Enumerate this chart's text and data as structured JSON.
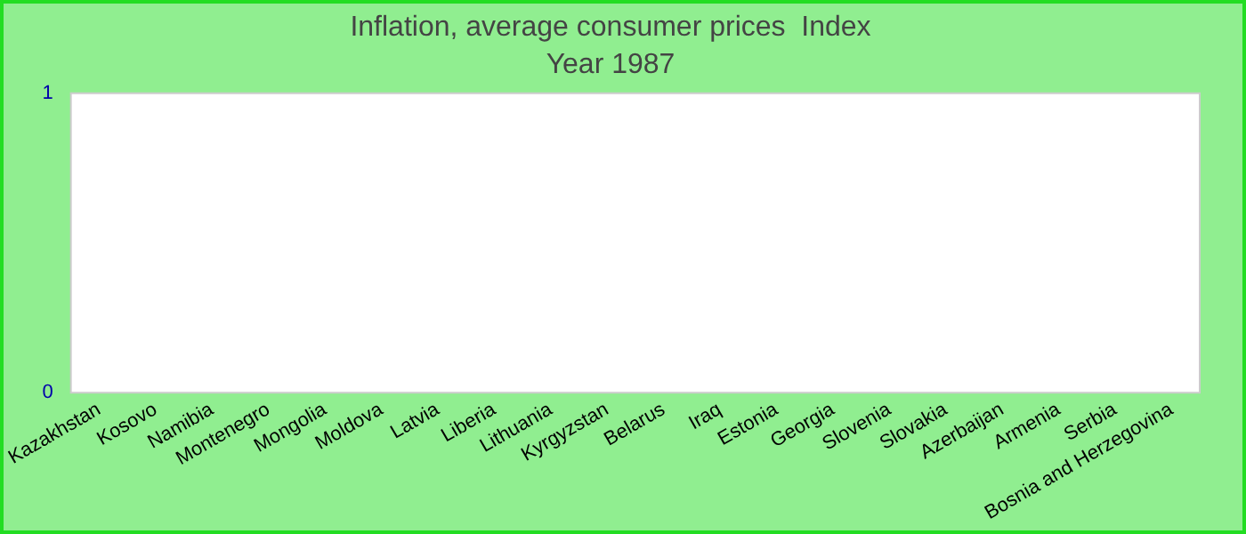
{
  "chart_data": {
    "type": "bar",
    "title": "Inflation, average consumer prices  Index",
    "subtitle": "Year 1987",
    "categories": [
      "Kazakhstan",
      "Kosovo",
      "Namibia",
      "Montenegro",
      "Mongolia",
      "Moldova",
      "Latvia",
      "Liberia",
      "Lithuania",
      "Kyrgyzstan",
      "Belarus",
      "Iraq",
      "Estonia",
      "Georgia",
      "Slovenia",
      "Slovakia",
      "Azerbaijan",
      "Armenia",
      "Serbia",
      "Bosnia and Herzegovina"
    ],
    "values": [
      null,
      null,
      null,
      null,
      null,
      null,
      null,
      null,
      null,
      null,
      null,
      null,
      null,
      null,
      null,
      null,
      null,
      null,
      null,
      null
    ],
    "ylim": [
      0,
      1
    ],
    "yticks": [
      0,
      1
    ],
    "grid": false,
    "legend": false
  }
}
